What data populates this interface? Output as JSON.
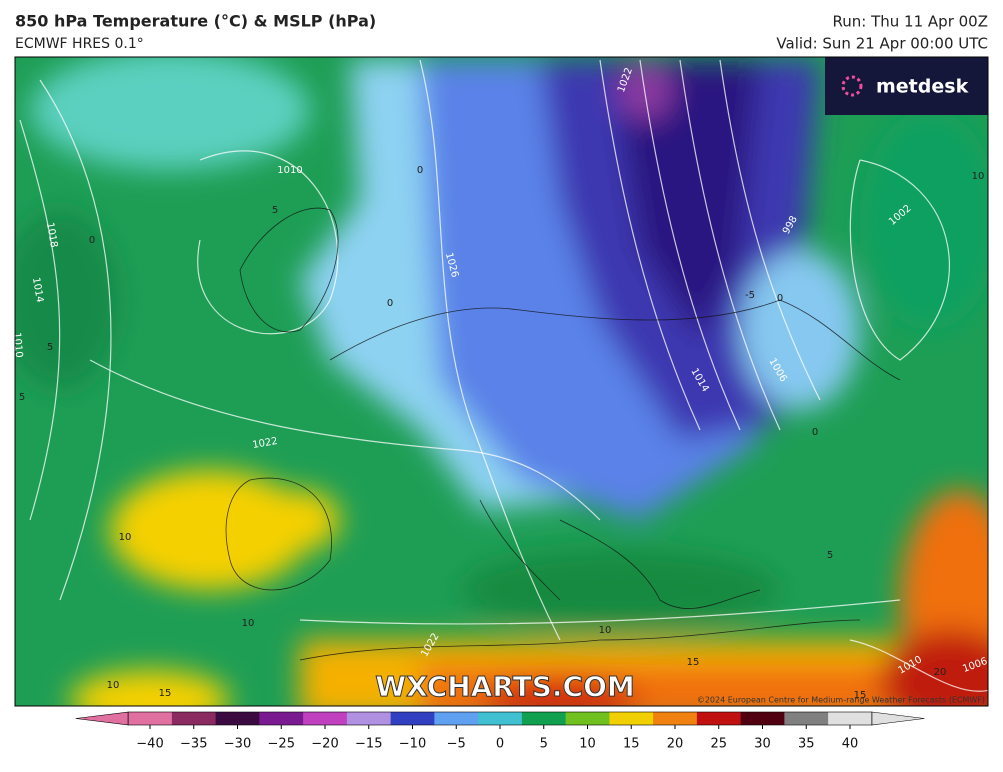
{
  "header": {
    "title": "850 hPa Temperature (°C) & MSLP (hPa)",
    "subtitle": "ECMWF HRES 0.1°",
    "run": "Run: Thu 11 Apr 00Z",
    "valid": "Valid: Sun 21 Apr 00:00 UTC"
  },
  "logo": "metdesk",
  "watermark": "WXCHARTS.COM",
  "copyright": "©2024 European Centre for Medium-range Weather Forecasts (ECMWF)",
  "map": {
    "isobar_labels": [
      "1010",
      "1018",
      "1014",
      "1010",
      "1022",
      "1026",
      "1022",
      "1014",
      "1006",
      "998",
      "1002",
      "1010",
      "1006",
      "1022"
    ],
    "temperature_labels": [
      "0",
      "5",
      "0",
      "0",
      "5",
      "5",
      "10",
      "10",
      "10",
      "15",
      "10",
      "15",
      "20",
      "5",
      "-5",
      "0",
      "0",
      "10",
      "15"
    ]
  },
  "colorbar": {
    "ticks": [
      {
        "value": -40,
        "label": "−40"
      },
      {
        "value": -35,
        "label": "−35"
      },
      {
        "value": -30,
        "label": "−30"
      },
      {
        "value": -25,
        "label": "−25"
      },
      {
        "value": -20,
        "label": "−20"
      },
      {
        "value": -15,
        "label": "−15"
      },
      {
        "value": -10,
        "label": "−10"
      },
      {
        "value": -5,
        "label": "−5"
      },
      0,
      5,
      10,
      15,
      20,
      25,
      30,
      35,
      40
    ],
    "colors": [
      "#e070a0",
      "#8a2a60",
      "#3a0a40",
      "#7a1a90",
      "#c040c0",
      "#b090e0",
      "#3040c0",
      "#60a0f0",
      "#40c0d0",
      "#10a050",
      "#70c020",
      "#f0d000",
      "#f08010",
      "#c01010",
      "#500010",
      "#808080",
      "#e0e0e0"
    ]
  }
}
